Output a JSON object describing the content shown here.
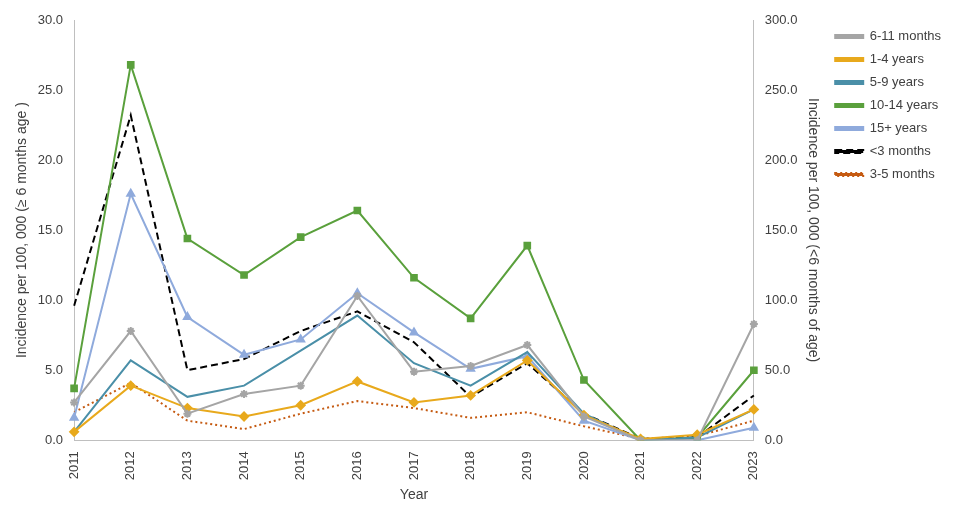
{
  "chart_data": {
    "type": "line",
    "x_label": "Year",
    "y_label": "Incidence per 100, 000 (≥ 6 months age )",
    "y2_label": "Incidence per 100, 000 (<6 months of age)",
    "categories": [
      "2011",
      "2012",
      "2013",
      "2014",
      "2015",
      "2016",
      "2017",
      "2018",
      "2019",
      "2020",
      "2021",
      "2022",
      "2023"
    ],
    "ylim": [
      0,
      30
    ],
    "yticks": [
      {
        "value": 0,
        "label": "0.0"
      },
      {
        "value": 5,
        "label": "5.0"
      },
      {
        "value": 10,
        "label": "10.0"
      },
      {
        "value": 15,
        "label": "15.0"
      },
      {
        "value": 20,
        "label": "20.0"
      },
      {
        "value": 25,
        "label": "25.0"
      },
      {
        "value": 30,
        "label": "30.0"
      }
    ],
    "y2lim": [
      0,
      300
    ],
    "y2ticks": [
      {
        "value": 0,
        "label": "0.0"
      },
      {
        "value": 50,
        "label": "50.0"
      },
      {
        "value": 100,
        "label": "100.0"
      },
      {
        "value": 150,
        "label": "150.0"
      },
      {
        "value": 200,
        "label": "200.0"
      },
      {
        "value": 250,
        "label": "250.0"
      },
      {
        "value": 300,
        "label": "300.0"
      }
    ],
    "grid": false,
    "legend": "right",
    "series": [
      {
        "name": "6-11 months",
        "color": "#a5a5a5",
        "marker": "star",
        "line_style": "solid",
        "values": [
          2.7,
          7.8,
          1.9,
          3.3,
          3.9,
          10.3,
          4.9,
          5.3,
          6.8,
          1.7,
          0.0,
          0.0,
          8.3
        ]
      },
      {
        "name": "1-4 years",
        "color": "#e8a91c",
        "marker": "diamond",
        "line_style": "solid",
        "values": [
          0.6,
          3.9,
          2.3,
          1.7,
          2.5,
          4.2,
          2.7,
          3.2,
          5.7,
          1.8,
          0.1,
          0.4,
          2.2
        ]
      },
      {
        "name": "5-9 years",
        "color": "#4a8fa8",
        "marker": "none",
        "line_style": "solid",
        "values": [
          0.6,
          5.7,
          3.1,
          3.9,
          6.4,
          8.9,
          5.5,
          3.9,
          6.3,
          1.9,
          0.0,
          0.2,
          2.2
        ]
      },
      {
        "name": "10-14 years",
        "color": "#5aa03c",
        "marker": "square",
        "line_style": "solid",
        "values": [
          3.7,
          26.8,
          14.4,
          11.8,
          14.5,
          16.4,
          11.6,
          8.7,
          13.9,
          4.3,
          0.0,
          0.2,
          5.0
        ]
      },
      {
        "name": "15+ years",
        "color": "#8faadc",
        "marker": "triangle",
        "line_style": "solid",
        "values": [
          1.6,
          17.6,
          8.8,
          6.1,
          7.2,
          10.5,
          7.7,
          5.1,
          6.0,
          1.4,
          0.0,
          0.0,
          0.9
        ]
      },
      {
        "name": "<3 months",
        "color": "#000000",
        "marker": "none",
        "line_style": "dashed",
        "axis": "y2",
        "values": [
          96,
          232,
          50,
          58,
          78,
          92,
          70,
          31,
          55,
          19,
          1,
          2,
          32
        ]
      },
      {
        "name": "3-5 months",
        "color": "#c55a11",
        "marker": "none",
        "line_style": "dotted",
        "axis": "y2",
        "values": [
          20,
          41,
          14,
          8,
          19,
          28,
          23,
          16,
          20,
          10,
          1,
          3,
          14
        ]
      }
    ]
  }
}
